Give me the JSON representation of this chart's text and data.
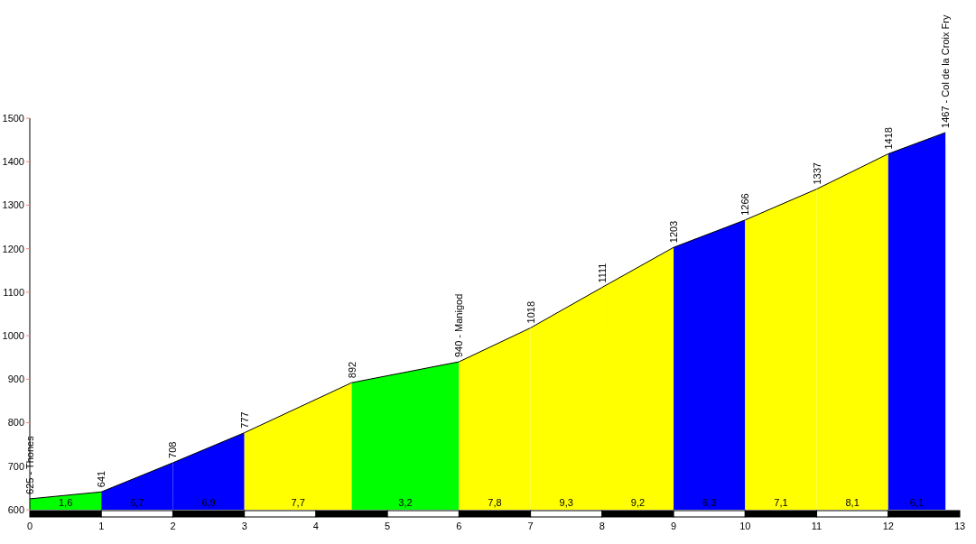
{
  "chart_data": {
    "type": "area",
    "xlim": [
      0,
      13
    ],
    "xticks": [
      0,
      1,
      2,
      3,
      4,
      5,
      6,
      7,
      8,
      9,
      10,
      11,
      12,
      13
    ],
    "ylim": [
      600,
      1500
    ],
    "yticks": [
      600,
      700,
      800,
      900,
      1000,
      1100,
      1200,
      1300,
      1400,
      1500
    ],
    "series": [
      {
        "color": "#00ff00",
        "x": [
          0,
          1
        ],
        "values": [
          625,
          641
        ]
      },
      {
        "color": "#0000ff",
        "x": [
          1,
          2
        ],
        "values": [
          641,
          708
        ]
      },
      {
        "color": "#0000ff",
        "x": [
          2,
          3
        ],
        "values": [
          708,
          777
        ]
      },
      {
        "color": "#ffff00",
        "x": [
          3,
          4.5
        ],
        "values": [
          777,
          892
        ]
      },
      {
        "color": "#00ff00",
        "x": [
          4.5,
          6
        ],
        "values": [
          892,
          940
        ]
      },
      {
        "color": "#ffff00",
        "x": [
          6,
          7
        ],
        "values": [
          940,
          1018
        ]
      },
      {
        "color": "#ffff00",
        "x": [
          7,
          8
        ],
        "values": [
          1018,
          1111
        ]
      },
      {
        "color": "#ffff00",
        "x": [
          8,
          9
        ],
        "values": [
          1111,
          1203
        ]
      },
      {
        "color": "#0000ff",
        "x": [
          9,
          10
        ],
        "values": [
          1203,
          1266
        ]
      },
      {
        "color": "#ffff00",
        "x": [
          10,
          11
        ],
        "values": [
          1266,
          1337
        ]
      },
      {
        "color": "#ffff00",
        "x": [
          11,
          12
        ],
        "values": [
          1337,
          1418
        ]
      },
      {
        "color": "#0000ff",
        "x": [
          12,
          12.8
        ],
        "values": [
          1418,
          1467
        ]
      }
    ],
    "annotations": [
      {
        "text": "625 - Thones",
        "x": 0,
        "y": 625
      },
      {
        "text": "641",
        "x": 1,
        "y": 641
      },
      {
        "text": "708",
        "x": 2,
        "y": 708
      },
      {
        "text": "777",
        "x": 3,
        "y": 777
      },
      {
        "text": "892",
        "x": 4.5,
        "y": 892
      },
      {
        "text": "940 - Manigod",
        "x": 6,
        "y": 940
      },
      {
        "text": "1018",
        "x": 7,
        "y": 1018
      },
      {
        "text": "1111",
        "x": 8,
        "y": 1111
      },
      {
        "text": "1203",
        "x": 9,
        "y": 1203
      },
      {
        "text": "1266",
        "x": 10,
        "y": 1266
      },
      {
        "text": "1337",
        "x": 11,
        "y": 1337
      },
      {
        "text": "1418",
        "x": 12,
        "y": 1418
      },
      {
        "text": "1467 - Col de la Croix Fry",
        "x": 12.8,
        "y": 1467
      },
      "1,6",
      "6,7",
      "6,9",
      "7,7",
      "3,2",
      "7,8",
      "9,3",
      "9,2",
      "6,3",
      "7,1",
      "8,1",
      "6,1"
    ]
  }
}
